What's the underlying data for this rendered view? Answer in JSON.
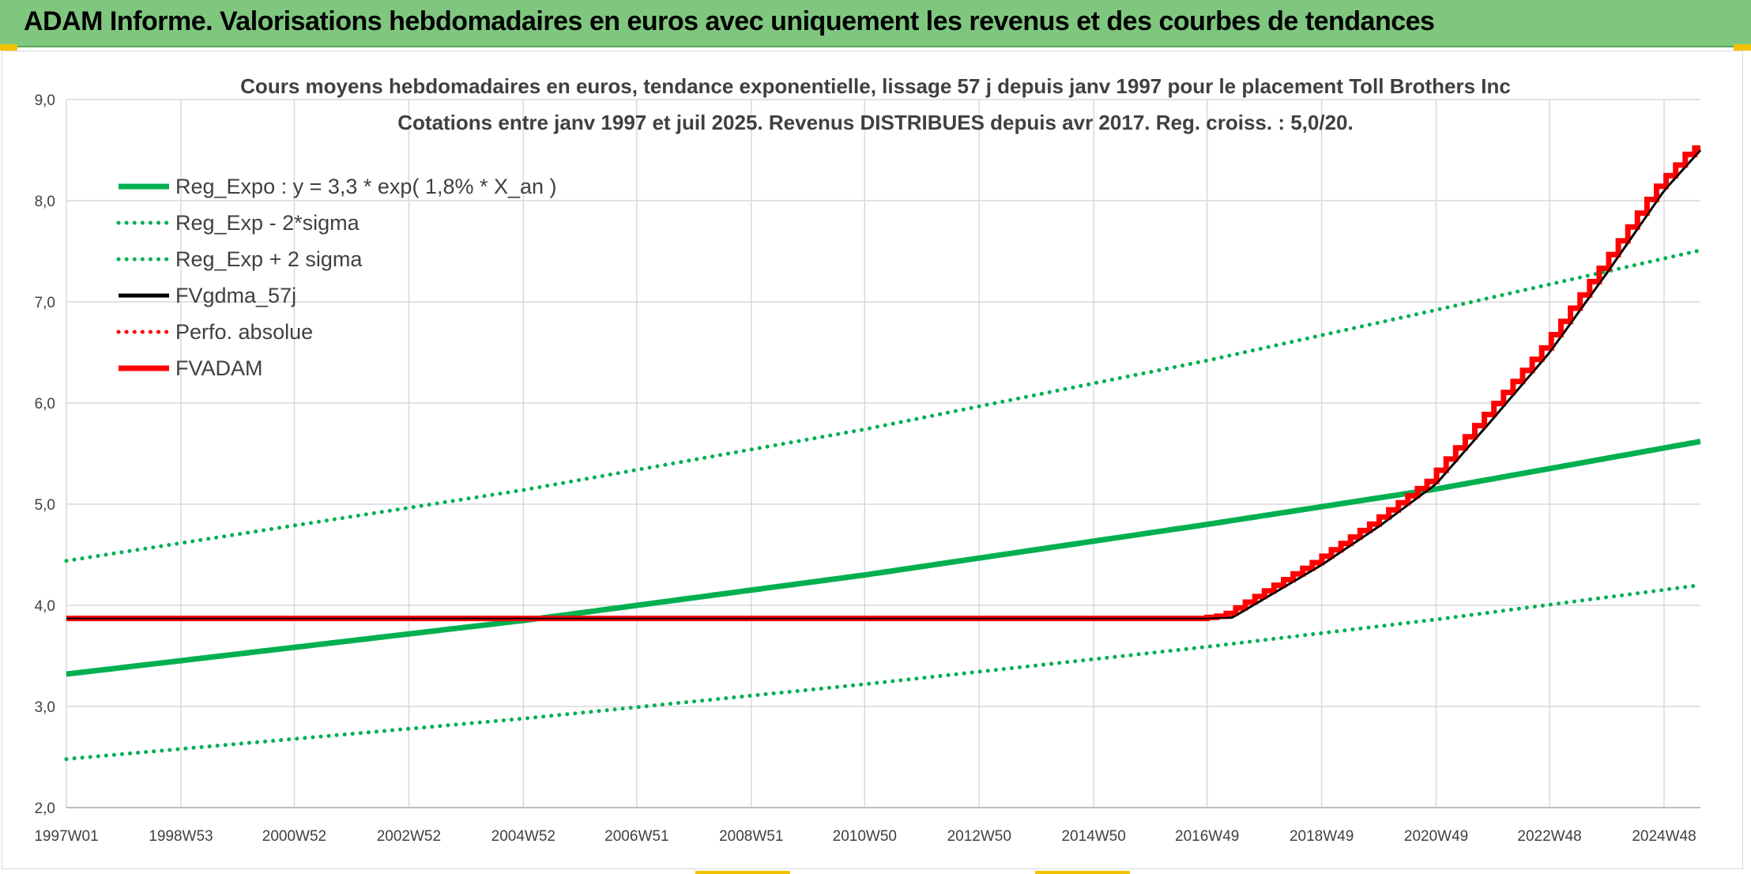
{
  "header": {
    "title": "ADAM Informe. Valorisations hebdomadaires en euros avec uniquement les revenus et des courbes de tendances"
  },
  "colors": {
    "banner": "#7fc77f",
    "green": "#00b050",
    "red": "#ff0000",
    "black": "#000000",
    "grid": "#d9d9d9",
    "text": "#404040"
  },
  "chart_data": {
    "type": "line",
    "title": "Cours moyens hebdomadaires en euros, tendance exponentielle, lissage 57 j depuis janv 1997 pour le placement Toll Brothers Inc",
    "subtitle": "Cotations entre janv 1997 et juil 2025. Revenus DISTRIBUES depuis avr 2017. Reg. croiss. : 5,0/20.",
    "x_tick_labels": [
      "1997W01",
      "1998W53",
      "2000W52",
      "2002W52",
      "2004W52",
      "2006W51",
      "2008W51",
      "2010W50",
      "2012W50",
      "2014W50",
      "2016W49",
      "2018W49",
      "2020W49",
      "2022W48",
      "2024W48"
    ],
    "x_range": [
      "1997W01",
      "2025W29"
    ],
    "y_tick_labels": [
      "2,0",
      "3,0",
      "4,0",
      "5,0",
      "6,0",
      "7,0",
      "8,0",
      "9,0"
    ],
    "ylim": [
      2.0,
      9.0
    ],
    "grid": true,
    "legend_position": "top-left",
    "legend": [
      "Reg_Expo : y = 3,3 * exp( 1,8% *  X_an )",
      "Reg_Exp - 2*sigma",
      "Reg_Exp + 2 sigma",
      "FVgdma_57j",
      "Perfo. absolue",
      "FVADAM"
    ],
    "series": [
      {
        "name": "Reg_Expo : y = 3,3 * exp( 1,8% *  X_an )",
        "style": "solid",
        "color": "#00b050",
        "x": [
          "1997W01",
          "2004W52",
          "2010W50",
          "2016W49",
          "2020W49",
          "2025W29"
        ],
        "y": [
          3.32,
          3.85,
          4.3,
          4.8,
          5.15,
          5.62
        ]
      },
      {
        "name": "Reg_Exp - 2*sigma",
        "style": "dotted",
        "color": "#00b050",
        "x": [
          "1997W01",
          "2004W52",
          "2010W50",
          "2016W49",
          "2020W49",
          "2025W29"
        ],
        "y": [
          2.48,
          2.88,
          3.22,
          3.59,
          3.86,
          4.2
        ]
      },
      {
        "name": "Reg_Exp + 2 sigma",
        "style": "dotted",
        "color": "#00b050",
        "x": [
          "1997W01",
          "2004W52",
          "2010W50",
          "2016W49",
          "2020W49",
          "2025W29"
        ],
        "y": [
          4.44,
          5.14,
          5.74,
          6.42,
          6.92,
          7.51
        ]
      },
      {
        "name": "FVgdma_57j",
        "style": "solid",
        "color": "#000000",
        "x": [
          "1997W01",
          "2016W49",
          "2017W20",
          "2018W49",
          "2019W49",
          "2020W49",
          "2021W49",
          "2022W48",
          "2023W49",
          "2024W48",
          "2025W29"
        ],
        "y": [
          3.87,
          3.87,
          3.88,
          4.4,
          4.78,
          5.2,
          5.85,
          6.5,
          7.3,
          8.1,
          8.5
        ]
      },
      {
        "name": "Perfo. absolue",
        "style": "dotted",
        "color": "#ff0000",
        "x": [],
        "y": []
      },
      {
        "name": "FVADAM",
        "style": "solid-stepped",
        "color": "#ff0000",
        "x": [
          "1997W01",
          "2016W49",
          "2017W20",
          "2018W49",
          "2019W49",
          "2020W49",
          "2021W49",
          "2022W48",
          "2023W49",
          "2024W48",
          "2025W29"
        ],
        "y": [
          3.87,
          3.87,
          3.9,
          4.42,
          4.8,
          5.22,
          5.88,
          6.52,
          7.32,
          8.12,
          8.52
        ]
      }
    ]
  }
}
